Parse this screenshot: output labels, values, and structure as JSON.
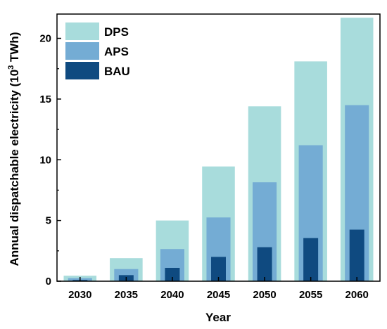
{
  "chart_data": {
    "type": "bar",
    "categories": [
      "2030",
      "2035",
      "2040",
      "2045",
      "2050",
      "2055",
      "2060"
    ],
    "series": [
      {
        "name": "DPS",
        "color": "#a8dcdc",
        "values": [
          0.45,
          1.9,
          5.0,
          9.45,
          14.4,
          18.1,
          21.7
        ]
      },
      {
        "name": "APS",
        "color": "#74acd4",
        "values": [
          0.25,
          1.0,
          2.65,
          5.25,
          8.15,
          11.2,
          14.5
        ]
      },
      {
        "name": "BAU",
        "color": "#0f4a80",
        "values": [
          0.1,
          0.5,
          1.1,
          2.0,
          2.8,
          3.55,
          4.25
        ]
      }
    ],
    "xlabel": "Year",
    "ylabel": "Annual dispatchable electricity (10",
    "ylabel_sup": "3",
    "ylabel_unit": " TWh)",
    "ylim": [
      0,
      22
    ],
    "yticks": [
      0,
      5,
      10,
      15,
      20
    ],
    "legend_position": "top-left",
    "grid": false
  }
}
